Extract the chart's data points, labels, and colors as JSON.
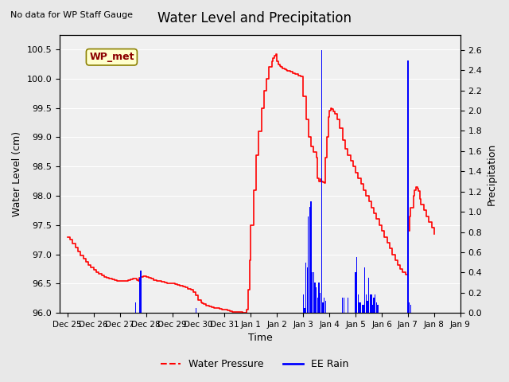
{
  "title": "Water Level and Precipitation",
  "top_left_text": "No data for WP Staff Gauge",
  "ylabel_left": "Water Level (cm)",
  "ylabel_right": "Precipitation",
  "xlabel": "Time",
  "ylim_left": [
    96.0,
    100.75
  ],
  "ylim_right": [
    0.0,
    2.75
  ],
  "yticks_left": [
    96.0,
    96.5,
    97.0,
    97.5,
    98.0,
    98.5,
    99.0,
    99.5,
    100.0,
    100.5
  ],
  "yticks_right": [
    0.0,
    0.2,
    0.4,
    0.6,
    0.8,
    1.0,
    1.2,
    1.4,
    1.6,
    1.8,
    2.0,
    2.2,
    2.4,
    2.6
  ],
  "bg_color": "#e8e8e8",
  "plot_bg_color": "#f0f0f0",
  "legend_label_wp": "Water Pressure",
  "legend_label_rain": "EE Rain",
  "wp_color": "red",
  "rain_color": "blue",
  "annotation_box_text": "WP_met",
  "annotation_box_color": "#ffffcc",
  "annotation_box_border": "#8B8000",
  "water_pressure": [
    [
      0.0,
      97.3
    ],
    [
      0.1,
      97.25
    ],
    [
      0.2,
      97.18
    ],
    [
      0.3,
      97.12
    ],
    [
      0.4,
      97.05
    ],
    [
      0.5,
      96.98
    ],
    [
      0.6,
      96.92
    ],
    [
      0.7,
      96.87
    ],
    [
      0.8,
      96.82
    ],
    [
      0.9,
      96.78
    ],
    [
      1.0,
      96.74
    ],
    [
      1.1,
      96.7
    ],
    [
      1.2,
      96.67
    ],
    [
      1.3,
      96.64
    ],
    [
      1.4,
      96.62
    ],
    [
      1.5,
      96.6
    ],
    [
      1.6,
      96.58
    ],
    [
      1.7,
      96.57
    ],
    [
      1.8,
      96.56
    ],
    [
      1.9,
      96.55
    ],
    [
      2.0,
      96.54
    ],
    [
      2.1,
      96.54
    ],
    [
      2.2,
      96.55
    ],
    [
      2.3,
      96.56
    ],
    [
      2.4,
      96.57
    ],
    [
      2.5,
      96.58
    ],
    [
      2.6,
      96.59
    ],
    [
      2.65,
      96.56
    ],
    [
      2.7,
      96.55
    ],
    [
      2.75,
      96.6
    ],
    [
      2.8,
      96.62
    ],
    [
      2.9,
      96.63
    ],
    [
      3.0,
      96.62
    ],
    [
      3.1,
      96.6
    ],
    [
      3.2,
      96.58
    ],
    [
      3.3,
      96.56
    ],
    [
      3.4,
      96.55
    ],
    [
      3.5,
      96.54
    ],
    [
      3.6,
      96.53
    ],
    [
      3.7,
      96.52
    ],
    [
      3.8,
      96.51
    ],
    [
      3.9,
      96.5
    ],
    [
      4.0,
      96.5
    ],
    [
      4.1,
      96.49
    ],
    [
      4.2,
      96.48
    ],
    [
      4.3,
      96.47
    ],
    [
      4.4,
      96.45
    ],
    [
      4.5,
      96.43
    ],
    [
      4.6,
      96.41
    ],
    [
      4.7,
      96.39
    ],
    [
      4.8,
      96.35
    ],
    [
      4.9,
      96.3
    ],
    [
      5.0,
      96.22
    ],
    [
      5.1,
      96.18
    ],
    [
      5.15,
      96.16
    ],
    [
      5.2,
      96.15
    ],
    [
      5.3,
      96.13
    ],
    [
      5.4,
      96.11
    ],
    [
      5.5,
      96.1
    ],
    [
      5.6,
      96.09
    ],
    [
      5.7,
      96.08
    ],
    [
      5.8,
      96.07
    ],
    [
      5.9,
      96.06
    ],
    [
      6.0,
      96.05
    ],
    [
      6.1,
      96.04
    ],
    [
      6.2,
      96.03
    ],
    [
      6.3,
      96.02
    ],
    [
      6.4,
      96.02
    ],
    [
      6.5,
      96.01
    ],
    [
      6.6,
      96.01
    ],
    [
      6.7,
      96.0
    ],
    [
      6.8,
      96.0
    ],
    [
      6.85,
      96.05
    ],
    [
      6.9,
      96.4
    ],
    [
      6.95,
      96.9
    ],
    [
      7.0,
      97.5
    ],
    [
      7.1,
      98.1
    ],
    [
      7.2,
      98.7
    ],
    [
      7.3,
      99.1
    ],
    [
      7.4,
      99.5
    ],
    [
      7.5,
      99.8
    ],
    [
      7.6,
      100.0
    ],
    [
      7.7,
      100.2
    ],
    [
      7.8,
      100.3
    ],
    [
      7.85,
      100.35
    ],
    [
      7.9,
      100.4
    ],
    [
      7.95,
      100.42
    ],
    [
      8.0,
      100.3
    ],
    [
      8.05,
      100.25
    ],
    [
      8.1,
      100.22
    ],
    [
      8.15,
      100.2
    ],
    [
      8.2,
      100.18
    ],
    [
      8.25,
      100.17
    ],
    [
      8.3,
      100.16
    ],
    [
      8.35,
      100.15
    ],
    [
      8.4,
      100.14
    ],
    [
      8.5,
      100.12
    ],
    [
      8.6,
      100.1
    ],
    [
      8.7,
      100.08
    ],
    [
      8.8,
      100.06
    ],
    [
      8.9,
      100.04
    ],
    [
      9.0,
      99.7
    ],
    [
      9.1,
      99.3
    ],
    [
      9.2,
      99.0
    ],
    [
      9.3,
      98.85
    ],
    [
      9.4,
      98.75
    ],
    [
      9.5,
      98.65
    ],
    [
      9.55,
      98.3
    ],
    [
      9.6,
      98.25
    ],
    [
      9.65,
      98.28
    ],
    [
      9.7,
      98.25
    ],
    [
      9.75,
      98.23
    ],
    [
      9.8,
      98.22
    ],
    [
      9.85,
      98.65
    ],
    [
      9.9,
      99.0
    ],
    [
      9.95,
      99.35
    ],
    [
      10.0,
      99.45
    ],
    [
      10.05,
      99.5
    ],
    [
      10.1,
      99.48
    ],
    [
      10.15,
      99.44
    ],
    [
      10.2,
      99.4
    ],
    [
      10.3,
      99.3
    ],
    [
      10.4,
      99.15
    ],
    [
      10.5,
      98.95
    ],
    [
      10.6,
      98.8
    ],
    [
      10.7,
      98.7
    ],
    [
      10.8,
      98.6
    ],
    [
      10.9,
      98.5
    ],
    [
      11.0,
      98.4
    ],
    [
      11.1,
      98.3
    ],
    [
      11.2,
      98.2
    ],
    [
      11.3,
      98.1
    ],
    [
      11.4,
      98.0
    ],
    [
      11.5,
      97.9
    ],
    [
      11.6,
      97.8
    ],
    [
      11.7,
      97.7
    ],
    [
      11.8,
      97.6
    ],
    [
      11.9,
      97.5
    ],
    [
      12.0,
      97.4
    ],
    [
      12.1,
      97.3
    ],
    [
      12.2,
      97.2
    ],
    [
      12.3,
      97.1
    ],
    [
      12.4,
      97.0
    ],
    [
      12.5,
      96.9
    ],
    [
      12.6,
      96.82
    ],
    [
      12.7,
      96.75
    ],
    [
      12.8,
      96.7
    ],
    [
      12.9,
      96.65
    ],
    [
      13.0,
      97.4
    ],
    [
      13.05,
      97.65
    ],
    [
      13.1,
      97.8
    ],
    [
      13.2,
      98.0
    ],
    [
      13.25,
      98.1
    ],
    [
      13.3,
      98.15
    ],
    [
      13.35,
      98.12
    ],
    [
      13.4,
      98.08
    ],
    [
      13.45,
      97.95
    ],
    [
      13.5,
      97.85
    ],
    [
      13.6,
      97.75
    ],
    [
      13.7,
      97.65
    ],
    [
      13.8,
      97.55
    ],
    [
      13.9,
      97.45
    ],
    [
      14.0,
      97.35
    ]
  ],
  "rain_bars": [
    [
      2.6,
      0.1
    ],
    [
      2.75,
      0.35
    ],
    [
      2.8,
      0.42
    ],
    [
      4.9,
      0.05
    ],
    [
      9.0,
      0.18
    ],
    [
      9.05,
      0.05
    ],
    [
      9.1,
      0.5
    ],
    [
      9.15,
      0.45
    ],
    [
      9.2,
      0.95
    ],
    [
      9.25,
      1.05
    ],
    [
      9.3,
      1.1
    ],
    [
      9.35,
      0.4
    ],
    [
      9.4,
      0.4
    ],
    [
      9.45,
      0.3
    ],
    [
      9.5,
      0.25
    ],
    [
      9.55,
      0.15
    ],
    [
      9.6,
      0.3
    ],
    [
      9.65,
      0.2
    ],
    [
      9.7,
      2.6
    ],
    [
      9.75,
      0.1
    ],
    [
      9.8,
      0.15
    ],
    [
      9.85,
      0.12
    ],
    [
      10.5,
      0.15
    ],
    [
      10.55,
      0.15
    ],
    [
      10.7,
      0.15
    ],
    [
      11.0,
      0.4
    ],
    [
      11.05,
      0.55
    ],
    [
      11.1,
      0.18
    ],
    [
      11.15,
      0.1
    ],
    [
      11.2,
      0.1
    ],
    [
      11.25,
      0.08
    ],
    [
      11.3,
      0.08
    ],
    [
      11.35,
      0.45
    ],
    [
      11.4,
      0.18
    ],
    [
      11.45,
      0.12
    ],
    [
      11.5,
      0.35
    ],
    [
      11.55,
      0.18
    ],
    [
      11.6,
      0.18
    ],
    [
      11.65,
      0.08
    ],
    [
      11.7,
      0.15
    ],
    [
      11.75,
      0.18
    ],
    [
      11.8,
      0.1
    ],
    [
      11.85,
      0.08
    ],
    [
      13.0,
      2.5
    ],
    [
      13.05,
      0.1
    ],
    [
      13.1,
      0.08
    ]
  ],
  "x_tick_positions": [
    0,
    1,
    2,
    3,
    4,
    5,
    6,
    7,
    8,
    9,
    10,
    11,
    12,
    13,
    14,
    15
  ],
  "x_tick_labels": [
    "Dec 25",
    "Dec 26",
    "Dec 27",
    "Dec 28",
    "Dec 29",
    "Dec 30",
    "Dec 31",
    "Jan 1",
    "Jan 2",
    "Jan 3",
    "Jan 4",
    "Jan 5",
    "Jan 6",
    "Jan 7",
    "Jan 8",
    "Jan 9"
  ],
  "xlim": [
    -0.3,
    14.5
  ]
}
